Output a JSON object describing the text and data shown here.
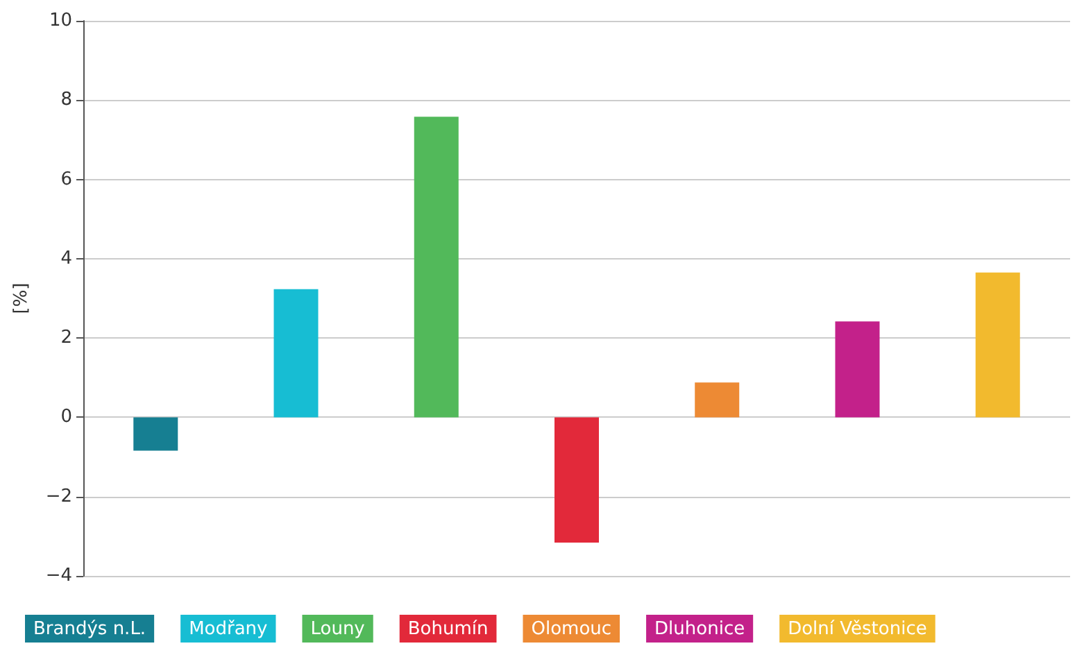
{
  "chart_data": {
    "type": "bar",
    "ylabel": "[%]",
    "categories": [
      null
    ],
    "series": [
      {
        "name": "Brandýs n.L.",
        "color": "#167f92",
        "values": [
          -0.84
        ]
      },
      {
        "name": "Modřany",
        "color": "#17bdd3",
        "values": [
          3.23
        ]
      },
      {
        "name": "Louny",
        "color": "#52b95a",
        "values": [
          7.58
        ]
      },
      {
        "name": "Bohumín",
        "color": "#e2293a",
        "values": [
          -3.16
        ]
      },
      {
        "name": "Olomouc",
        "color": "#ed8a34",
        "values": [
          0.88
        ]
      },
      {
        "name": "Dluhonice",
        "color": "#c3218a",
        "values": [
          2.42
        ]
      },
      {
        "name": "Dolní Věstonice",
        "color": "#f2ba2e",
        "values": [
          3.65
        ]
      }
    ],
    "ylim": [
      -4,
      10
    ],
    "yticks": [
      {
        "value": -4,
        "label": "−4"
      },
      {
        "value": -2,
        "label": "−2"
      },
      0,
      2,
      4,
      6,
      8,
      10
    ],
    "grid": "y",
    "legend": "bottom"
  }
}
